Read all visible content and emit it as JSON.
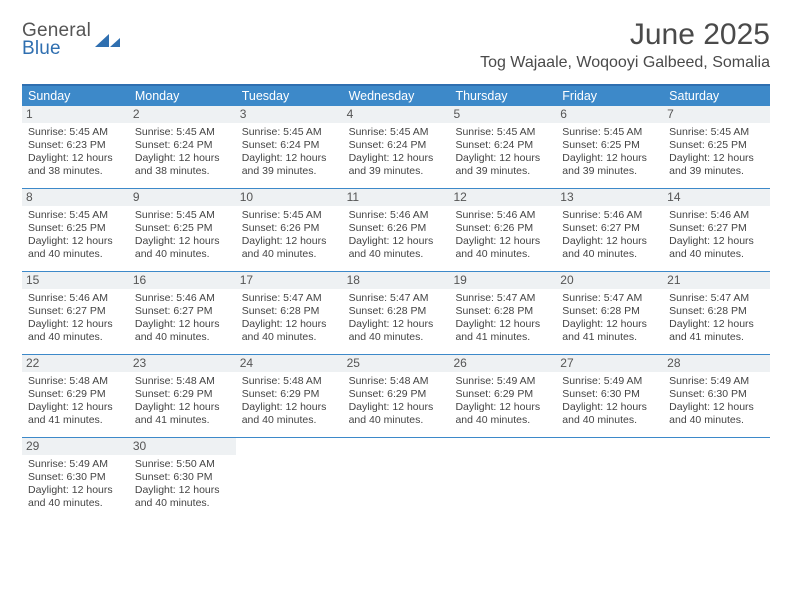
{
  "logo": {
    "top": "General",
    "bottom": "Blue"
  },
  "title": "June 2025",
  "location": "Tog Wajaale, Woqooyi Galbeed, Somalia",
  "colors": {
    "header_bar": "#3d89c9",
    "accent_border": "#2f6fb0",
    "daynum_bg": "#eef1f3",
    "text": "#444444",
    "logo_gray": "#555555",
    "logo_blue": "#2f6fb0"
  },
  "days_of_week": [
    "Sunday",
    "Monday",
    "Tuesday",
    "Wednesday",
    "Thursday",
    "Friday",
    "Saturday"
  ],
  "weeks": [
    [
      {
        "n": "1",
        "sunrise": "5:45 AM",
        "sunset": "6:23 PM",
        "daylight": "12 hours and 38 minutes."
      },
      {
        "n": "2",
        "sunrise": "5:45 AM",
        "sunset": "6:24 PM",
        "daylight": "12 hours and 38 minutes."
      },
      {
        "n": "3",
        "sunrise": "5:45 AM",
        "sunset": "6:24 PM",
        "daylight": "12 hours and 39 minutes."
      },
      {
        "n": "4",
        "sunrise": "5:45 AM",
        "sunset": "6:24 PM",
        "daylight": "12 hours and 39 minutes."
      },
      {
        "n": "5",
        "sunrise": "5:45 AM",
        "sunset": "6:24 PM",
        "daylight": "12 hours and 39 minutes."
      },
      {
        "n": "6",
        "sunrise": "5:45 AM",
        "sunset": "6:25 PM",
        "daylight": "12 hours and 39 minutes."
      },
      {
        "n": "7",
        "sunrise": "5:45 AM",
        "sunset": "6:25 PM",
        "daylight": "12 hours and 39 minutes."
      }
    ],
    [
      {
        "n": "8",
        "sunrise": "5:45 AM",
        "sunset": "6:25 PM",
        "daylight": "12 hours and 40 minutes."
      },
      {
        "n": "9",
        "sunrise": "5:45 AM",
        "sunset": "6:25 PM",
        "daylight": "12 hours and 40 minutes."
      },
      {
        "n": "10",
        "sunrise": "5:45 AM",
        "sunset": "6:26 PM",
        "daylight": "12 hours and 40 minutes."
      },
      {
        "n": "11",
        "sunrise": "5:46 AM",
        "sunset": "6:26 PM",
        "daylight": "12 hours and 40 minutes."
      },
      {
        "n": "12",
        "sunrise": "5:46 AM",
        "sunset": "6:26 PM",
        "daylight": "12 hours and 40 minutes."
      },
      {
        "n": "13",
        "sunrise": "5:46 AM",
        "sunset": "6:27 PM",
        "daylight": "12 hours and 40 minutes."
      },
      {
        "n": "14",
        "sunrise": "5:46 AM",
        "sunset": "6:27 PM",
        "daylight": "12 hours and 40 minutes."
      }
    ],
    [
      {
        "n": "15",
        "sunrise": "5:46 AM",
        "sunset": "6:27 PM",
        "daylight": "12 hours and 40 minutes."
      },
      {
        "n": "16",
        "sunrise": "5:46 AM",
        "sunset": "6:27 PM",
        "daylight": "12 hours and 40 minutes."
      },
      {
        "n": "17",
        "sunrise": "5:47 AM",
        "sunset": "6:28 PM",
        "daylight": "12 hours and 40 minutes."
      },
      {
        "n": "18",
        "sunrise": "5:47 AM",
        "sunset": "6:28 PM",
        "daylight": "12 hours and 40 minutes."
      },
      {
        "n": "19",
        "sunrise": "5:47 AM",
        "sunset": "6:28 PM",
        "daylight": "12 hours and 41 minutes."
      },
      {
        "n": "20",
        "sunrise": "5:47 AM",
        "sunset": "6:28 PM",
        "daylight": "12 hours and 41 minutes."
      },
      {
        "n": "21",
        "sunrise": "5:47 AM",
        "sunset": "6:28 PM",
        "daylight": "12 hours and 41 minutes."
      }
    ],
    [
      {
        "n": "22",
        "sunrise": "5:48 AM",
        "sunset": "6:29 PM",
        "daylight": "12 hours and 41 minutes."
      },
      {
        "n": "23",
        "sunrise": "5:48 AM",
        "sunset": "6:29 PM",
        "daylight": "12 hours and 41 minutes."
      },
      {
        "n": "24",
        "sunrise": "5:48 AM",
        "sunset": "6:29 PM",
        "daylight": "12 hours and 40 minutes."
      },
      {
        "n": "25",
        "sunrise": "5:48 AM",
        "sunset": "6:29 PM",
        "daylight": "12 hours and 40 minutes."
      },
      {
        "n": "26",
        "sunrise": "5:49 AM",
        "sunset": "6:29 PM",
        "daylight": "12 hours and 40 minutes."
      },
      {
        "n": "27",
        "sunrise": "5:49 AM",
        "sunset": "6:30 PM",
        "daylight": "12 hours and 40 minutes."
      },
      {
        "n": "28",
        "sunrise": "5:49 AM",
        "sunset": "6:30 PM",
        "daylight": "12 hours and 40 minutes."
      }
    ],
    [
      {
        "n": "29",
        "sunrise": "5:49 AM",
        "sunset": "6:30 PM",
        "daylight": "12 hours and 40 minutes."
      },
      {
        "n": "30",
        "sunrise": "5:50 AM",
        "sunset": "6:30 PM",
        "daylight": "12 hours and 40 minutes."
      },
      null,
      null,
      null,
      null,
      null
    ]
  ],
  "labels": {
    "sunrise": "Sunrise:",
    "sunset": "Sunset:",
    "daylight": "Daylight:"
  }
}
